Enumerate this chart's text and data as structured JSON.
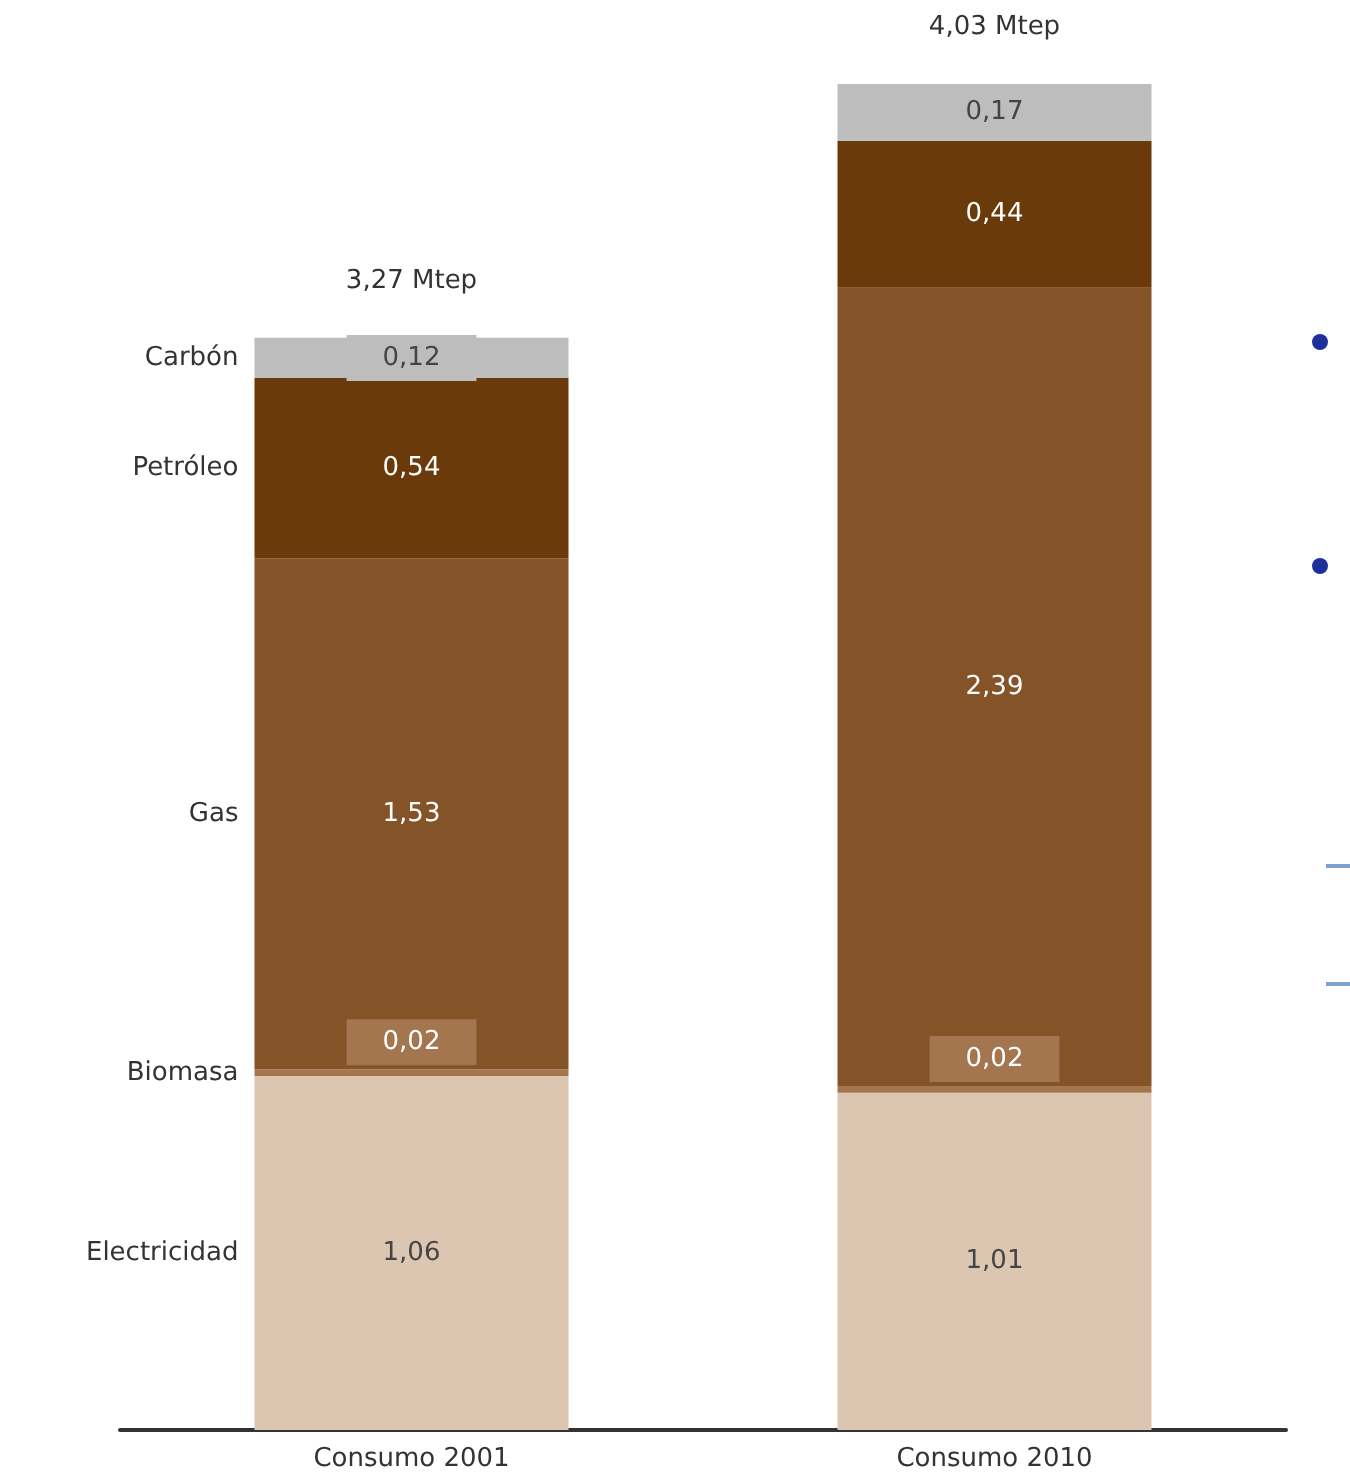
{
  "chart_data": {
    "type": "bar",
    "stacked": true,
    "categories": [
      "Consumo 2001",
      "Consumo 2010"
    ],
    "series": [
      {
        "name": "Electricidad",
        "color": "#dcc5b1",
        "values": [
          1.06,
          1.01
        ],
        "value_labels": [
          "1,06",
          "1,01"
        ]
      },
      {
        "name": "Biomasa",
        "color": "#a47650",
        "values": [
          0.02,
          0.02
        ],
        "value_labels": [
          "0,02",
          "0,02"
        ]
      },
      {
        "name": "Gas",
        "color": "#855328",
        "values": [
          1.53,
          2.39
        ],
        "value_labels": [
          "1,53",
          "2,39"
        ]
      },
      {
        "name": "Petróleo",
        "color": "#6b3a0b",
        "values": [
          0.54,
          0.44
        ],
        "value_labels": [
          "0,54",
          "0,44"
        ]
      },
      {
        "name": "Carbón",
        "color": "#bdbdbd",
        "values": [
          0.12,
          0.17
        ],
        "value_labels": [
          "0,12",
          "0,17"
        ]
      }
    ],
    "totals": [
      "3,27 Mtep",
      "4,03 Mtep"
    ],
    "legend": "left",
    "grid": false
  }
}
